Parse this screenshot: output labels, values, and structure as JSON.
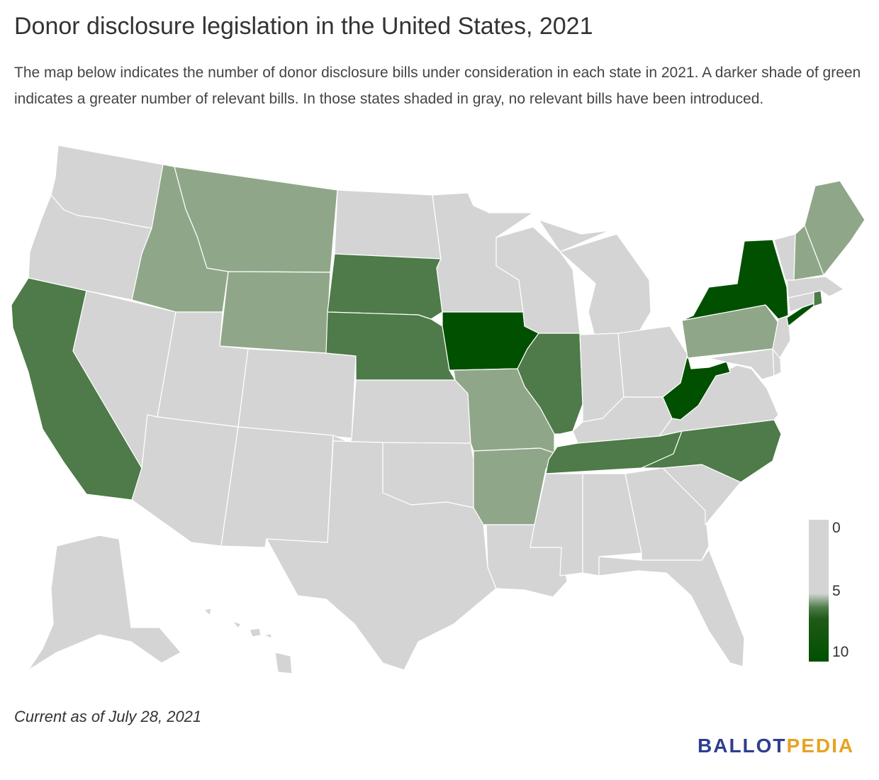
{
  "title": "Donor disclosure legislation in the United States, 2021",
  "subtitle": "The map below indicates the number of donor disclosure bills under consideration in each state in 2021. A darker shade of green indicates a greater number of relevant bills. In those states shaded in gray, no relevant bills have been introduced.",
  "legend": {
    "min_label": "0",
    "mid_label": "5",
    "max_label": "10"
  },
  "footnote": "Current as of July 28, 2021",
  "logo": {
    "part1": "BALLOT",
    "part2": "PEDIA"
  },
  "colors": {
    "none": "#d4d4d4",
    "light": "#8fa788",
    "medium": "#4e7b49",
    "dark": "#005000",
    "logo_blue": "#2d3e8f",
    "logo_orange": "#e7a324"
  },
  "map_data": {
    "shading": {
      "none": [
        "AK",
        "AL",
        "AZ",
        "CO",
        "CT",
        "DE",
        "FL",
        "GA",
        "HI",
        "IN",
        "KS",
        "KY",
        "LA",
        "MA",
        "MD",
        "MI",
        "MN",
        "MS",
        "ND",
        "NJ",
        "NM",
        "NV",
        "OH",
        "OK",
        "OR",
        "SC",
        "TX",
        "UT",
        "VA",
        "VT",
        "WA",
        "WI"
      ],
      "light": [
        "ID",
        "MT",
        "WY",
        "MO",
        "AR",
        "PA",
        "NH",
        "ME"
      ],
      "medium": [
        "CA",
        "SD",
        "NE",
        "IL",
        "TN",
        "NC",
        "RI"
      ],
      "dark": [
        "IA",
        "NY",
        "WV"
      ]
    }
  }
}
